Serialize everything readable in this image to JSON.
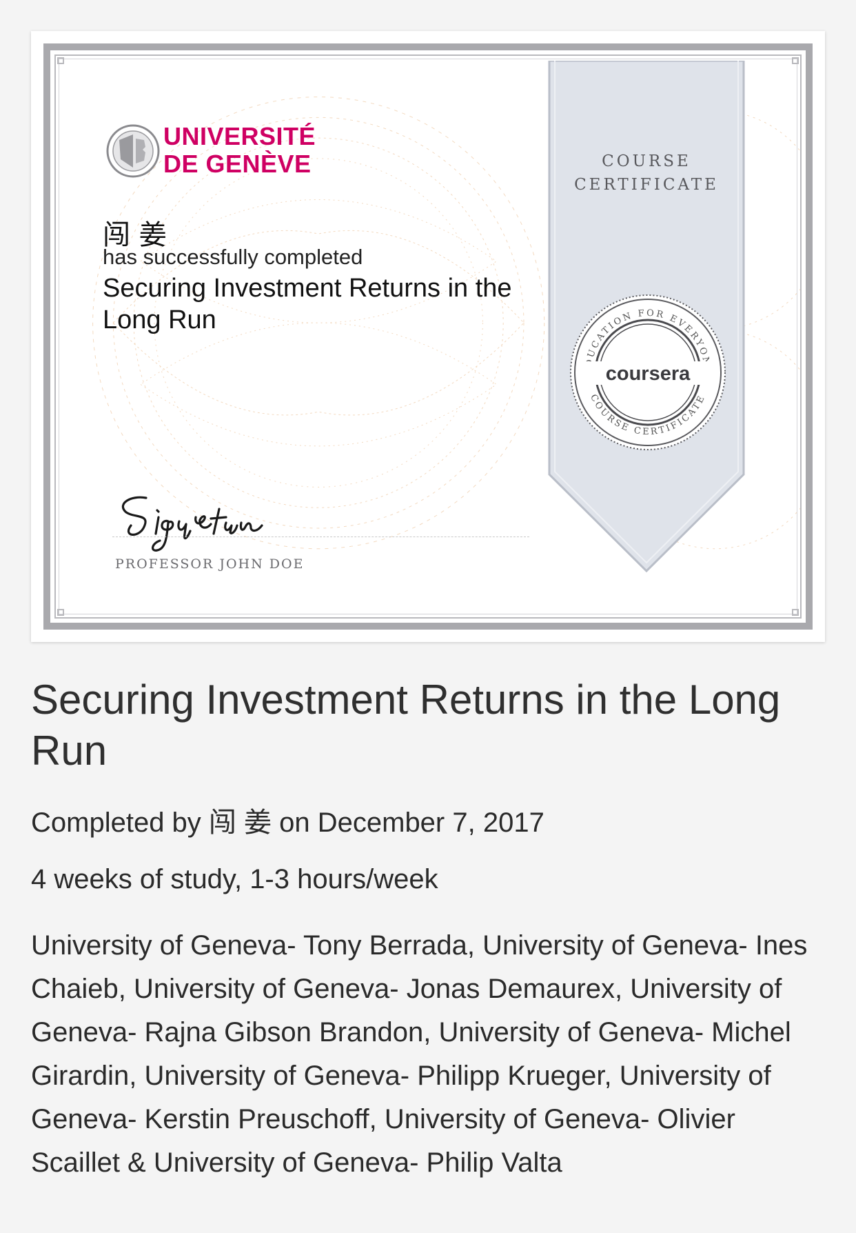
{
  "certificate": {
    "university": {
      "line1": "UNIVERSITÉ",
      "line2": "DE GENÈVE",
      "brand_color": "#cf0063"
    },
    "ribbon": {
      "line1": "COURSE",
      "line2": "CERTIFICATE"
    },
    "seal": {
      "brand": "coursera",
      "ring_top": "EDUCATION FOR EVERYONE",
      "ring_bottom": "COURSE CERTIFICATE"
    },
    "learner_name": "闯 姜",
    "completed_text": "has successfully completed",
    "course_title": "Securing Investment Returns in the Long Run",
    "signature_name": "PROFESSOR JOHN DOE"
  },
  "page": {
    "title": "Securing Investment Returns in the Long Run",
    "completed_by": "Completed by 闯 姜 on December 7, 2017",
    "study_info": "4 weeks of study, 1-3 hours/week",
    "instructors": "University of Geneva- Tony Berrada, University of Geneva- Ines Chaieb, University of Geneva- Jonas Demaurex, University of Geneva- Rajna Gibson Brandon, University of Geneva- Michel Girardin, University of Geneva- Philipp Krueger, University of Geneva- Kerstin Preuschoff, University of Geneva- Olivier Scaillet & University of Geneva- Philip Valta"
  }
}
